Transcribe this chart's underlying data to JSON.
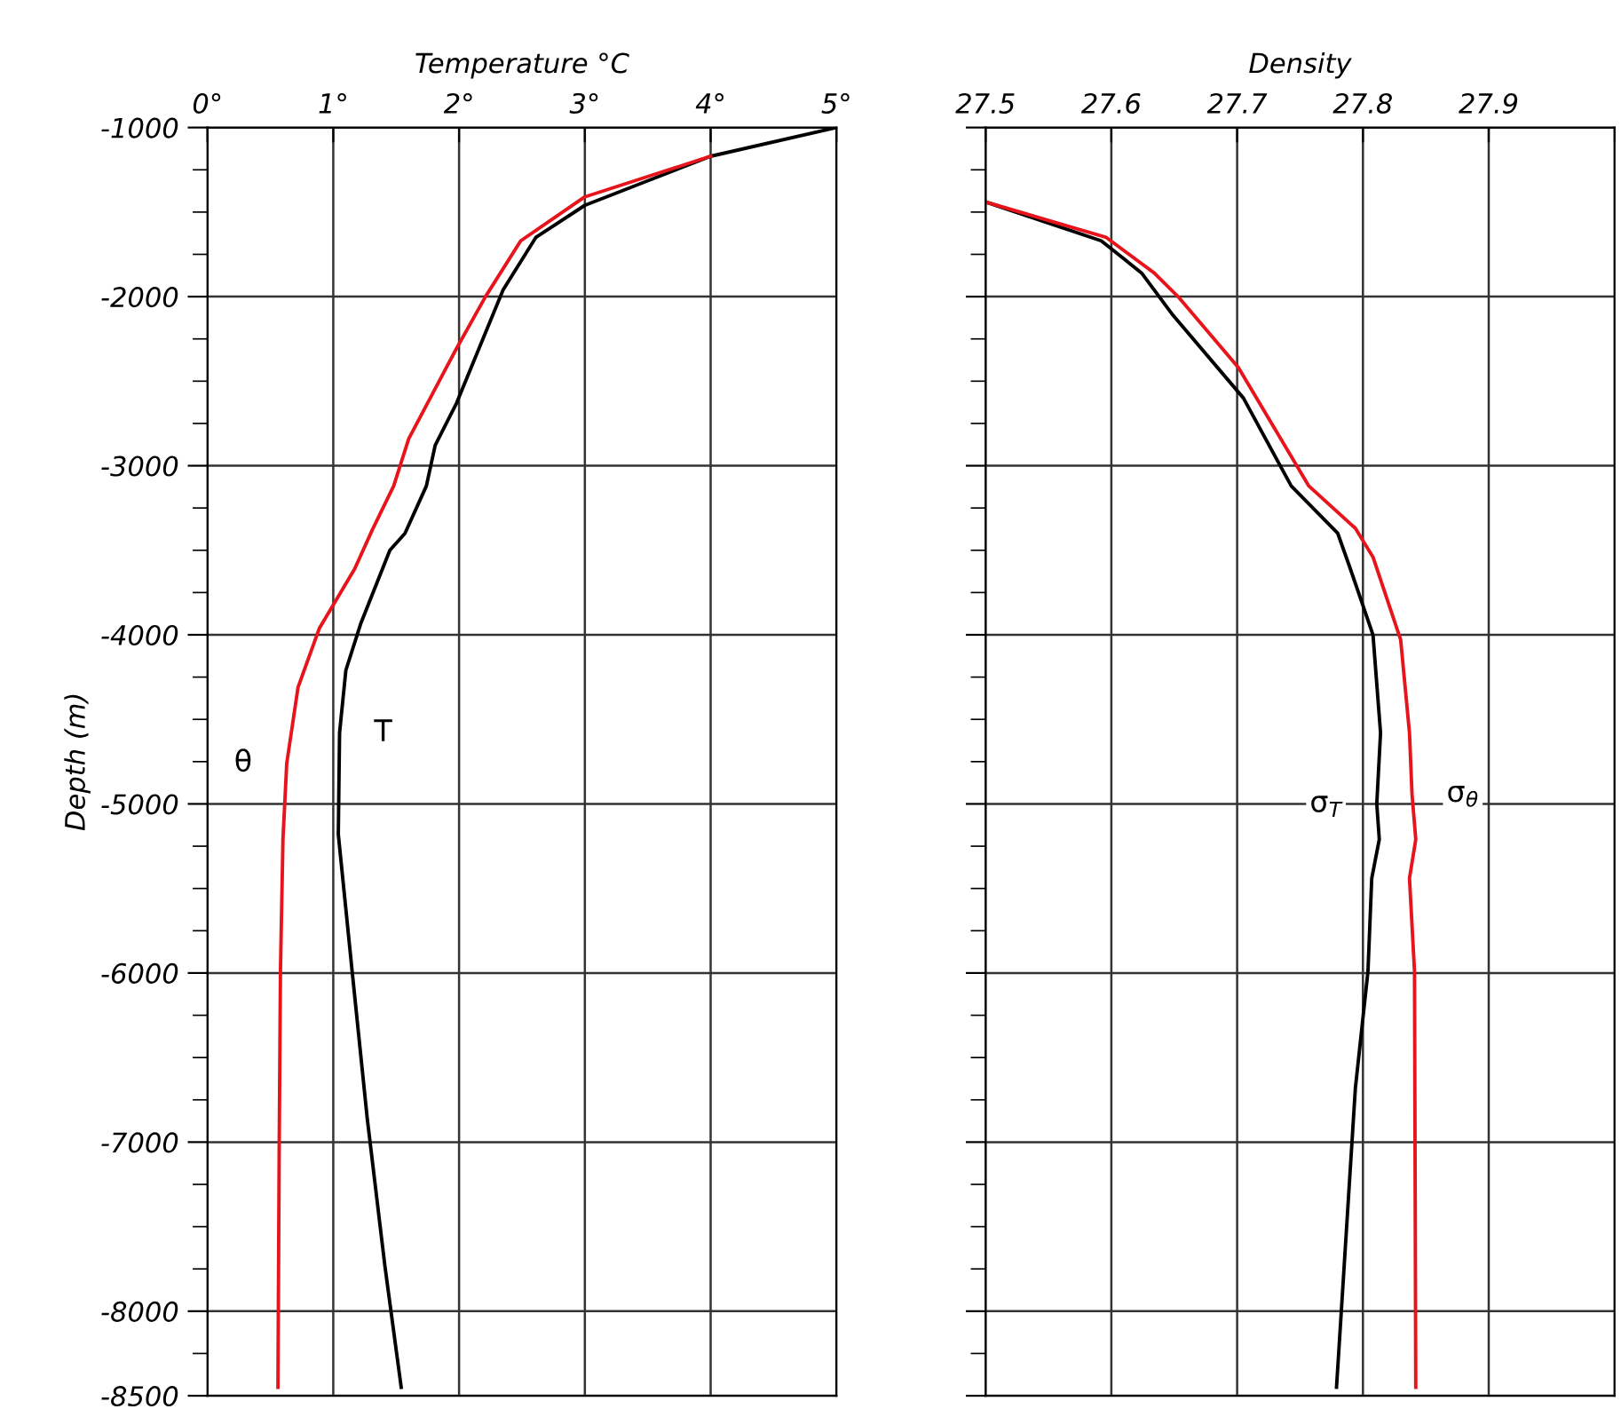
{
  "chart_data": [
    {
      "type": "line",
      "xlabel": "Temperature °C",
      "ylabel": "Depth (m)",
      "xlim": [
        0,
        5
      ],
      "ylim": [
        -8500,
        -1000
      ],
      "xticks": [
        {
          "value": 0,
          "label": "0°"
        },
        {
          "value": 1,
          "label": "1°"
        },
        {
          "value": 2,
          "label": "2°"
        },
        {
          "value": 3,
          "label": "3°"
        },
        {
          "value": 4,
          "label": "4°"
        },
        {
          "value": 5,
          "label": "5°"
        }
      ],
      "yticks": [
        -1000,
        {
          "value": -1250,
          "label": null
        },
        {
          "value": -1500,
          "label": null
        },
        {
          "value": -1750,
          "label": null
        },
        -2000,
        {
          "value": -2250,
          "label": null
        },
        {
          "value": -2500,
          "label": null
        },
        {
          "value": -2750,
          "label": null
        },
        -3000,
        {
          "value": -3250,
          "label": null
        },
        {
          "value": -3500,
          "label": null
        },
        {
          "value": -3750,
          "label": null
        },
        -4000,
        {
          "value": -4250,
          "label": null
        },
        {
          "value": -4500,
          "label": null
        },
        {
          "value": -4750,
          "label": null
        },
        -5000,
        {
          "value": -5250,
          "label": null
        },
        {
          "value": -5500,
          "label": null
        },
        {
          "value": -5750,
          "label": null
        },
        -6000,
        {
          "value": -6250,
          "label": null
        },
        {
          "value": -6500,
          "label": null
        },
        {
          "value": -6750,
          "label": null
        },
        -7000,
        {
          "value": -7250,
          "label": null
        },
        {
          "value": -7500,
          "label": null
        },
        {
          "value": -7750,
          "label": null
        },
        -8000,
        {
          "value": -8250,
          "label": null
        },
        -8500
      ],
      "grid": true,
      "series": [
        {
          "name": "T",
          "color": "#000000",
          "x": [
            5,
            4,
            3,
            2.61,
            2.35,
            1.98,
            1.81,
            1.74,
            1.57,
            1.45,
            1.22,
            1.1,
            1.05,
            1.04,
            1.15,
            1.27,
            1.41,
            1.54
          ],
          "values": [
            -1000,
            -1170,
            -1460,
            -1650,
            -1960,
            -2630,
            -2880,
            -3120,
            -3400,
            -3500,
            -3930,
            -4210,
            -4580,
            -5180,
            -5990,
            -6860,
            -7730,
            -8450
          ]
        },
        {
          "name": "θ",
          "color": "#e8141c",
          "x": [
            4,
            3,
            2.49,
            2.21,
            1.97,
            1.6,
            1.48,
            1.31,
            1.17,
            0.89,
            0.72,
            0.63,
            0.6,
            0.58,
            0.57,
            0.56
          ],
          "values": [
            -1170,
            -1410,
            -1670,
            -2000,
            -2320,
            -2840,
            -3120,
            -3380,
            -3610,
            -3960,
            -4310,
            -4760,
            -5210,
            -5990,
            -7040,
            -8450
          ]
        }
      ]
    },
    {
      "type": "line",
      "xlabel": "Density",
      "xlim": [
        27.5,
        28.0
      ],
      "ylim": [
        -8500,
        -1000
      ],
      "xticks": [
        27.5,
        27.6,
        27.7,
        27.8,
        27.9,
        {
          "value": 28.0,
          "label": null
        }
      ],
      "yticks": [
        -1000,
        {
          "value": -1250,
          "label": null
        },
        {
          "value": -1500,
          "label": null
        },
        {
          "value": -1750,
          "label": null
        },
        -2000,
        {
          "value": -2250,
          "label": null
        },
        {
          "value": -2500,
          "label": null
        },
        {
          "value": -2750,
          "label": null
        },
        -3000,
        {
          "value": -3250,
          "label": null
        },
        {
          "value": -3500,
          "label": null
        },
        {
          "value": -3750,
          "label": null
        },
        -4000,
        {
          "value": -4250,
          "label": null
        },
        {
          "value": -4500,
          "label": null
        },
        {
          "value": -4750,
          "label": null
        },
        -5000,
        {
          "value": -5250,
          "label": null
        },
        {
          "value": -5500,
          "label": null
        },
        {
          "value": -5750,
          "label": null
        },
        -6000,
        {
          "value": -6250,
          "label": null
        },
        {
          "value": -6500,
          "label": null
        },
        {
          "value": -6750,
          "label": null
        },
        -7000,
        {
          "value": -7250,
          "label": null
        },
        {
          "value": -7500,
          "label": null
        },
        {
          "value": -7750,
          "label": null
        },
        -8000,
        {
          "value": -8250,
          "label": null
        },
        -8500
      ],
      "grid": true,
      "tick_labels": "x",
      "series": [
        {
          "name": "σ$_{T}$",
          "color": "#000000",
          "x": [
            27.5,
            27.592,
            27.624,
            27.649,
            27.705,
            27.743,
            27.78,
            27.79,
            27.808,
            27.814,
            27.811,
            27.813,
            27.807,
            27.804,
            27.794,
            27.779
          ],
          "values": [
            -1440,
            -1670,
            -1860,
            -2110,
            -2600,
            -3120,
            -3400,
            -3610,
            -4000,
            -4580,
            -5000,
            -5210,
            -5440,
            -5990,
            -6680,
            -8450
          ]
        },
        {
          "name": "σ$_{θ}$",
          "color": "#e8141c",
          "x": [
            27.5,
            27.596,
            27.634,
            27.653,
            27.701,
            27.757,
            27.794,
            27.808,
            27.83,
            27.837,
            27.839,
            27.842,
            27.837,
            27.841,
            27.842
          ],
          "values": [
            -1440,
            -1650,
            -1860,
            -2000,
            -2420,
            -3120,
            -3370,
            -3540,
            -4030,
            -4580,
            -4940,
            -5210,
            -5440,
            -5990,
            -8450
          ]
        }
      ]
    }
  ]
}
